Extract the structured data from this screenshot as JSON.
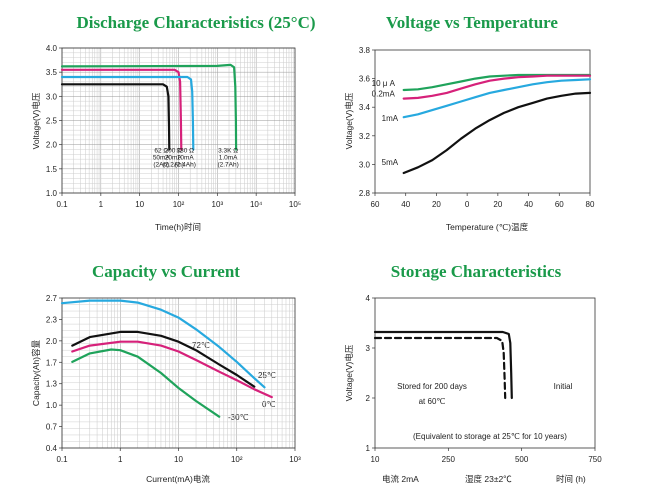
{
  "chart_data": [
    {
      "type": "line",
      "title": "Discharge Characteristics (25°C)",
      "xlabel": "Time(h)时间",
      "ylabel": "Voltage(V)电压",
      "x_scale": "log",
      "xlim": [
        0.1,
        100000
      ],
      "ylim": [
        1.0,
        4.0
      ],
      "x_ticks": [
        "0.1",
        "1",
        "10",
        "10²",
        "10³",
        "10⁴",
        "10⁵"
      ],
      "y_ticks": [
        "1.0",
        "1.5",
        "2.0",
        "2.5",
        "3.0",
        "3.5",
        "4.0"
      ],
      "grid": true,
      "series": [
        {
          "color": "#111111",
          "label": [
            "62 Ω",
            "50mA",
            "(2Ah)"
          ],
          "x": [
            0.1,
            40,
            50,
            55,
            57,
            58
          ],
          "y": [
            3.25,
            3.25,
            3.2,
            3.0,
            2.4,
            1.9
          ]
        },
        {
          "color": "#d6217a",
          "label": [
            "200 Ω",
            "20mA",
            "(2.2Ah)"
          ],
          "x": [
            0.1,
            80,
            100,
            110,
            115,
            118
          ],
          "y": [
            3.55,
            3.55,
            3.5,
            3.3,
            2.5,
            1.9
          ]
        },
        {
          "color": "#27a9df",
          "label": [
            "330 Ω",
            "10mA",
            "(2.4Ah)"
          ],
          "x": [
            0.1,
            170,
            210,
            225,
            235,
            240
          ],
          "y": [
            3.4,
            3.4,
            3.35,
            3.1,
            2.5,
            1.9
          ]
        },
        {
          "color": "#1fa35b",
          "label": [
            "3.3K Ω",
            "1.0mA",
            "(2.7Ah)"
          ],
          "x": [
            0.1,
            1000,
            2200,
            2700,
            2900,
            3000,
            3050
          ],
          "y": [
            3.62,
            3.63,
            3.65,
            3.6,
            3.2,
            2.5,
            1.9
          ]
        }
      ]
    },
    {
      "type": "line",
      "title": "Voltage vs Temperature",
      "xlabel": "Temperature (℃)温度",
      "ylabel": "Voltage(V)电压",
      "xlim": [
        -60,
        90
      ],
      "ylim": [
        2.8,
        3.8
      ],
      "x_ticks": [
        "60",
        "40",
        "20",
        "0",
        "20",
        "40",
        "60",
        "80"
      ],
      "y_ticks": [
        "2.8",
        "3.0",
        "3.2",
        "3.4",
        "3.6",
        "3.8"
      ],
      "grid": false,
      "series": [
        {
          "name": "10 μ A",
          "color": "#1fa35b",
          "x": [
            -40,
            -30,
            -20,
            -10,
            0,
            10,
            20,
            30,
            40,
            50,
            60,
            70,
            80,
            90
          ],
          "y": [
            3.52,
            3.525,
            3.54,
            3.56,
            3.58,
            3.6,
            3.615,
            3.62,
            3.625,
            3.625,
            3.625,
            3.625,
            3.625,
            3.625
          ]
        },
        {
          "name": "0.2mA",
          "color": "#d6217a",
          "x": [
            -40,
            -30,
            -20,
            -10,
            0,
            10,
            20,
            30,
            40,
            50,
            60,
            70,
            80,
            90
          ],
          "y": [
            3.46,
            3.465,
            3.48,
            3.5,
            3.53,
            3.56,
            3.585,
            3.6,
            3.61,
            3.615,
            3.62,
            3.62,
            3.62,
            3.62
          ]
        },
        {
          "name": "1mA",
          "color": "#27a9df",
          "x": [
            -40,
            -30,
            -20,
            -10,
            0,
            10,
            20,
            30,
            40,
            50,
            60,
            70,
            80,
            90
          ],
          "y": [
            3.33,
            3.35,
            3.38,
            3.41,
            3.44,
            3.47,
            3.5,
            3.52,
            3.54,
            3.56,
            3.575,
            3.585,
            3.59,
            3.595
          ]
        },
        {
          "name": "5mA",
          "color": "#111111",
          "x": [
            -40,
            -30,
            -20,
            -10,
            0,
            10,
            20,
            30,
            40,
            50,
            60,
            70,
            80,
            90
          ],
          "y": [
            2.94,
            2.98,
            3.03,
            3.1,
            3.18,
            3.25,
            3.31,
            3.36,
            3.4,
            3.43,
            3.46,
            3.48,
            3.495,
            3.5
          ]
        }
      ]
    },
    {
      "type": "line",
      "title": "Capacity vs Current",
      "xlabel": "Current(mA)电流",
      "ylabel": "Capacity(Ah)容量",
      "x_scale": "log",
      "xlim": [
        0.1,
        1000
      ],
      "ylim": [
        0.4,
        2.7
      ],
      "x_ticks": [
        "0.1",
        "1",
        "10",
        "10²",
        "10³"
      ],
      "y_ticks": [
        "0.4",
        "0.7",
        "1.0",
        "1.3",
        "1.7",
        "2.0",
        "2.3",
        "2.7"
      ],
      "grid": true,
      "annotations": [
        "72℃",
        "25℃",
        "0℃",
        "-30℃"
      ],
      "series": [
        {
          "name": "72℃",
          "color": "#27a9df",
          "x": [
            0.1,
            0.3,
            1,
            2,
            5,
            10,
            20,
            50,
            100,
            200,
            300
          ],
          "y": [
            2.62,
            2.66,
            2.66,
            2.63,
            2.52,
            2.4,
            2.22,
            1.95,
            1.72,
            1.47,
            1.33
          ]
        },
        {
          "name": "25℃",
          "color": "#111111",
          "x": [
            0.15,
            0.3,
            1,
            2,
            5,
            10,
            20,
            50,
            100,
            200
          ],
          "y": [
            1.97,
            2.1,
            2.18,
            2.18,
            2.12,
            2.03,
            1.9,
            1.68,
            1.52,
            1.34
          ]
        },
        {
          "name": "0℃",
          "color": "#d6217a",
          "x": [
            0.15,
            0.3,
            1,
            2,
            5,
            10,
            20,
            50,
            100,
            200,
            400
          ],
          "y": [
            1.88,
            1.97,
            2.03,
            2.03,
            1.97,
            1.88,
            1.75,
            1.57,
            1.44,
            1.3,
            1.18
          ]
        },
        {
          "name": "-30℃",
          "color": "#1fa35b",
          "x": [
            0.15,
            0.3,
            0.7,
            1,
            2,
            5,
            10,
            20,
            50
          ],
          "y": [
            1.72,
            1.85,
            1.91,
            1.9,
            1.8,
            1.55,
            1.32,
            1.12,
            0.88
          ]
        }
      ]
    },
    {
      "type": "line",
      "title": "Storage Characteristics",
      "xlabel": "",
      "ylabel": "Voltage(V)电压",
      "xlim": [
        10,
        750
      ],
      "ylim": [
        1,
        4
      ],
      "x_ticks": [
        "10",
        "250",
        "500",
        "750"
      ],
      "y_ticks": [
        "1",
        "2",
        "3",
        "4"
      ],
      "grid": false,
      "annotations": [
        "Stored for 200 days",
        "at 60℃",
        "Initial",
        "(Equivalent to storage at 25℃ for 10 years)"
      ],
      "footer": [
        "电流  2mA",
        "湿度  23±2℃",
        "时间 (h)"
      ],
      "series": [
        {
          "name": "Initial",
          "color": "#111111",
          "style": "solid",
          "x": [
            10,
            440,
            460,
            465,
            468,
            470
          ],
          "y": [
            3.32,
            3.32,
            3.28,
            3.1,
            2.5,
            2.0
          ]
        },
        {
          "name": "Stored for 200 days at 60℃",
          "color": "#111111",
          "style": "dashed",
          "x": [
            10,
            420,
            438,
            443,
            446,
            448
          ],
          "y": [
            3.2,
            3.2,
            3.14,
            2.9,
            2.4,
            2.0
          ]
        }
      ]
    }
  ]
}
